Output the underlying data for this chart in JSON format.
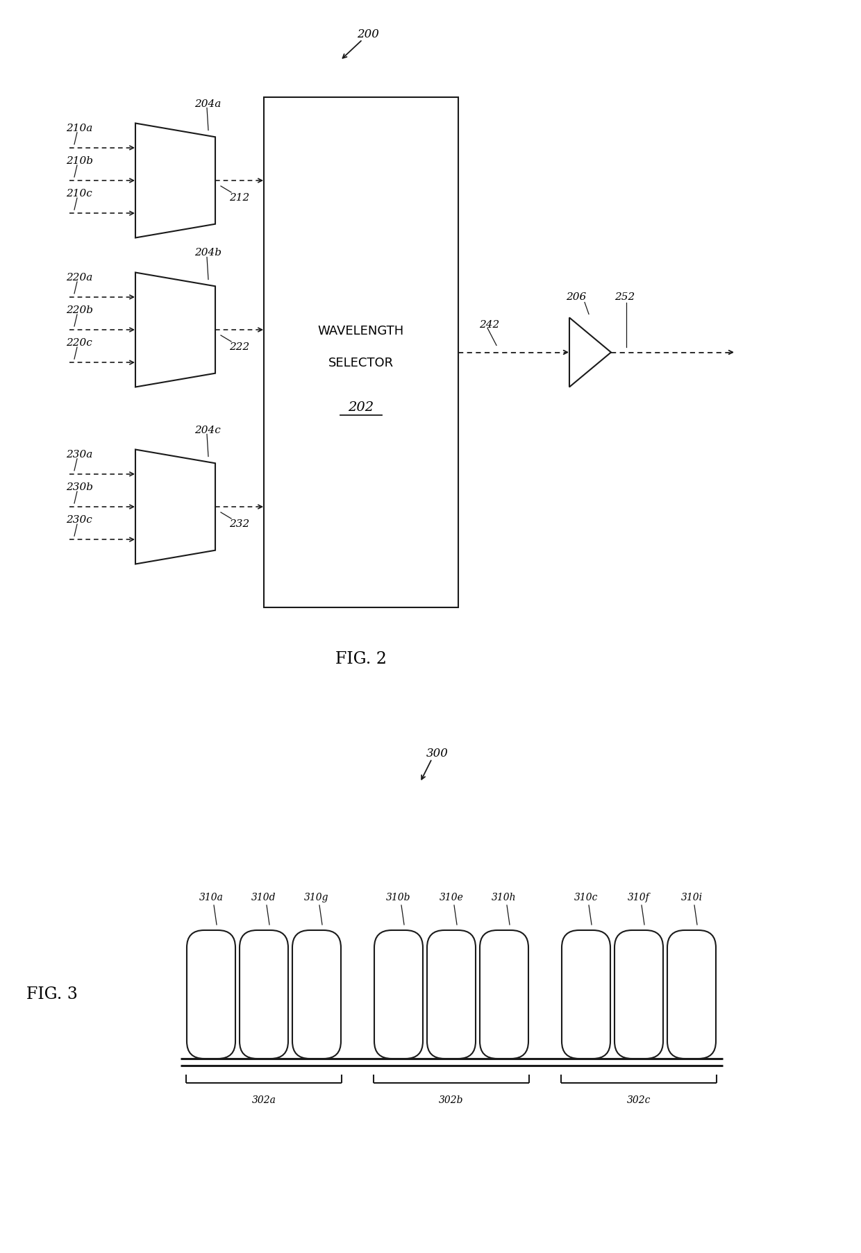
{
  "fig2": {
    "ref_label": "200",
    "ws_label_line1": "WAVELENGTH",
    "ws_label_line2": "SELECTOR",
    "ws_num": "202",
    "mux_204_labels": [
      "204a",
      "204b",
      "204c"
    ],
    "mux_num_labels": [
      "212",
      "222",
      "232"
    ],
    "input_labels": [
      [
        "210a",
        "210b",
        "210c"
      ],
      [
        "220a",
        "220b",
        "220c"
      ],
      [
        "230a",
        "230b",
        "230c"
      ]
    ],
    "amp_in_label": "242",
    "amp_label": "206",
    "out_label": "252",
    "fig_label": "FIG. 2"
  },
  "fig3": {
    "ref_label": "300",
    "channel_labels": [
      "310a",
      "310d",
      "310g",
      "310b",
      "310e",
      "310h",
      "310c",
      "310f",
      "310i"
    ],
    "group_labels": [
      "302a",
      "302b",
      "302c"
    ],
    "fig_label": "FIG. 3"
  },
  "bg_color": "#ffffff",
  "line_color": "#1a1a1a",
  "font_size": 12,
  "font_size_large": 14
}
